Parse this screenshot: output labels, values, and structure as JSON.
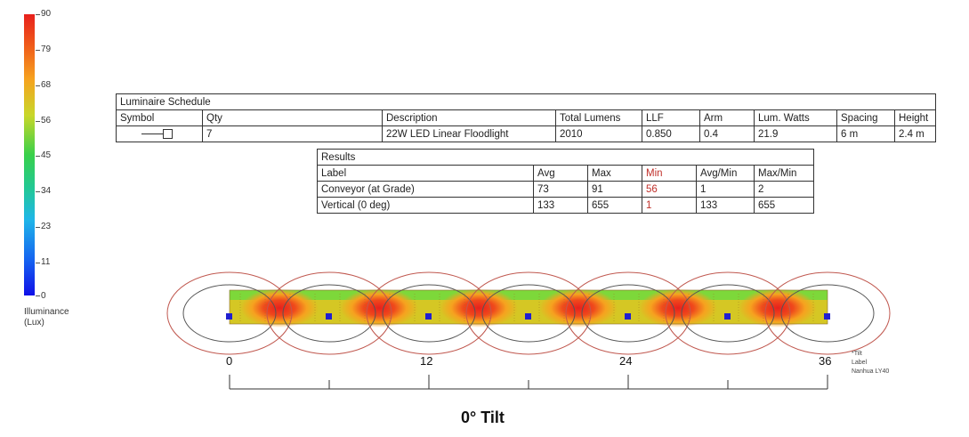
{
  "legend": {
    "labels": [
      "90",
      "79",
      "68",
      "56",
      "45",
      "34",
      "23",
      "11",
      "0"
    ],
    "title_line1": "Illuminance",
    "title_line2": "(Lux)"
  },
  "schedule": {
    "title": "Luminaire Schedule",
    "headers": [
      "Symbol",
      "Qty",
      "Description",
      "Total Lumens",
      "LLF",
      "Arm",
      "Lum. Watts",
      "Spacing",
      "Height"
    ],
    "row": [
      "",
      "7",
      "22W LED Linear Floodlight",
      "2010",
      "0.850",
      "0.4",
      "21.9",
      "6 m",
      "2.4 m"
    ]
  },
  "results": {
    "title": "Results",
    "headers": [
      "Label",
      "Avg",
      "Max",
      "Min",
      "Avg/Min",
      "Max/Min"
    ],
    "rows": [
      [
        "Conveyor (at Grade)",
        "73",
        "91",
        "56",
        "1",
        "2"
      ],
      [
        "Vertical (0 deg)",
        "133",
        "655",
        "1",
        "133",
        "655"
      ]
    ]
  },
  "scale": {
    "labels": [
      "0",
      "12",
      "24",
      "36"
    ]
  },
  "notes": {
    "line1": "*Tilt",
    "line2": "Label",
    "line3": "Nanhua LY40"
  },
  "caption": "0° Tilt",
  "colors": {
    "hot": "#e8201c",
    "warm": "#f6a21f",
    "mid": "#c8d72a",
    "cool": "#38d04a",
    "contour": "#c0584f",
    "luminaire": "#2020d0"
  }
}
